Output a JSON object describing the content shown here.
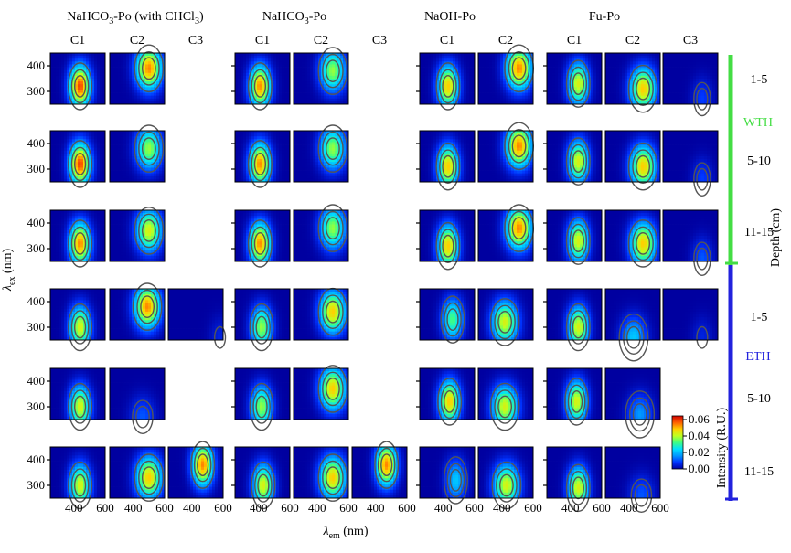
{
  "chart_data": {
    "type": "heatmap",
    "description_grid": "EEM component maps (C1-C3) for four extraction groups at three depths in two sites",
    "groups": [
      {
        "key": "chcl3",
        "title_main": "NaHCO",
        "title_sub": "3",
        "title_rest": "-Po (with CHCl",
        "title_sub2": "3",
        "title_end": ")",
        "components": [
          "C1",
          "C2",
          "C3"
        ]
      },
      {
        "key": "nahco3",
        "title_main": "NaHCO",
        "title_sub": "3",
        "title_rest": "-Po",
        "title_sub2": "",
        "title_end": "",
        "components": [
          "C1",
          "C2",
          "C3"
        ]
      },
      {
        "key": "naoh",
        "title_main": "NaOH-Po",
        "title_sub": "",
        "title_rest": "",
        "title_sub2": "",
        "title_end": "",
        "components": [
          "C1",
          "C2"
        ]
      },
      {
        "key": "fu",
        "title_main": "Fu-Po",
        "title_sub": "",
        "title_rest": "",
        "title_sub2": "",
        "title_end": "",
        "components": [
          "C1",
          "C2",
          "C3"
        ]
      }
    ],
    "rows": [
      {
        "site": "WTH",
        "depth": "1-5",
        "present": {
          "chcl3": [
            true,
            true,
            false
          ],
          "nahco3": [
            true,
            true,
            false
          ],
          "naoh": [
            true,
            true
          ],
          "fu": [
            true,
            true,
            true
          ]
        },
        "peaks": {
          "chcl3": [
            [
              440,
              320,
              0.055
            ],
            [
              500,
              390,
              0.05
            ]
          ],
          "nahco3": [
            [
              410,
              320,
              0.05
            ],
            [
              500,
              380,
              0.035
            ]
          ],
          "naoh": [
            [
              430,
              320,
              0.045
            ],
            [
              510,
              390,
              0.05
            ]
          ],
          "fu": [
            [
              450,
              330,
              0.04
            ],
            [
              490,
              310,
              0.045
            ],
            [
              500,
              270,
              0.008
            ]
          ]
        }
      },
      {
        "site": "WTH",
        "depth": "5-10",
        "present": {
          "chcl3": [
            true,
            true,
            false
          ],
          "nahco3": [
            true,
            true,
            false
          ],
          "naoh": [
            true,
            true
          ],
          "fu": [
            true,
            true,
            true
          ]
        },
        "peaks": {
          "chcl3": [
            [
              440,
              320,
              0.055
            ],
            [
              500,
              380,
              0.035
            ]
          ],
          "nahco3": [
            [
              410,
              320,
              0.05
            ],
            [
              500,
              380,
              0.035
            ]
          ],
          "naoh": [
            [
              430,
              310,
              0.045
            ],
            [
              510,
              390,
              0.05
            ]
          ],
          "fu": [
            [
              450,
              330,
              0.04
            ],
            [
              490,
              310,
              0.045
            ],
            [
              500,
              260,
              0.008
            ]
          ]
        }
      },
      {
        "site": "WTH",
        "depth": "11-15",
        "present": {
          "chcl3": [
            true,
            true,
            false
          ],
          "nahco3": [
            true,
            true,
            false
          ],
          "naoh": [
            true,
            true
          ],
          "fu": [
            true,
            true,
            true
          ]
        },
        "peaks": {
          "chcl3": [
            [
              440,
              320,
              0.05
            ],
            [
              500,
              370,
              0.04
            ]
          ],
          "nahco3": [
            [
              410,
              320,
              0.05
            ],
            [
              500,
              380,
              0.035
            ]
          ],
          "naoh": [
            [
              430,
              310,
              0.045
            ],
            [
              510,
              380,
              0.05
            ]
          ],
          "fu": [
            [
              450,
              330,
              0.04
            ],
            [
              490,
              320,
              0.045
            ],
            [
              500,
              260,
              0.01
            ]
          ]
        }
      },
      {
        "site": "ETH",
        "depth": "1-5",
        "present": {
          "chcl3": [
            true,
            true,
            true
          ],
          "nahco3": [
            true,
            true,
            false
          ],
          "naoh": [
            true,
            true
          ],
          "fu": [
            true,
            true,
            true
          ]
        },
        "peaks": {
          "chcl3": [
            [
              440,
              300,
              0.04
            ],
            [
              490,
              380,
              0.05
            ],
            [
              580,
              260,
              0.005
            ]
          ],
          "nahco3": [
            [
              420,
              300,
              0.035
            ],
            [
              500,
              360,
              0.045
            ]
          ],
          "naoh": [
            [
              460,
              330,
              0.03
            ],
            [
              420,
              320,
              0.04
            ]
          ],
          "fu": [
            [
              450,
              300,
              0.04
            ],
            [
              430,
              260,
              0.02
            ],
            [
              500,
              260,
              0.005
            ]
          ]
        }
      },
      {
        "site": "ETH",
        "depth": "5-10",
        "present": {
          "chcl3": [
            true,
            true,
            false
          ],
          "nahco3": [
            true,
            true,
            false
          ],
          "naoh": [
            true,
            true
          ],
          "fu": [
            true,
            true,
            false
          ]
        },
        "peaks": {
          "chcl3": [
            [
              440,
              300,
              0.04
            ],
            [
              460,
              260,
              0.01
            ]
          ],
          "nahco3": [
            [
              420,
              300,
              0.035
            ],
            [
              500,
              370,
              0.045
            ]
          ],
          "naoh": [
            [
              440,
              320,
              0.045
            ],
            [
              420,
              300,
              0.04
            ]
          ],
          "fu": [
            [
              440,
              320,
              0.04
            ],
            [
              470,
              270,
              0.015
            ]
          ]
        }
      },
      {
        "site": "ETH",
        "depth": "11-15",
        "present": {
          "chcl3": [
            true,
            true,
            true
          ],
          "nahco3": [
            true,
            true,
            true
          ],
          "naoh": [
            true,
            true
          ],
          "fu": [
            true,
            true,
            false
          ]
        },
        "peaks": {
          "chcl3": [
            [
              440,
              300,
              0.04
            ],
            [
              500,
              330,
              0.045
            ],
            [
              470,
              380,
              0.05
            ]
          ],
          "nahco3": [
            [
              430,
              300,
              0.04
            ],
            [
              500,
              330,
              0.045
            ],
            [
              470,
              380,
              0.05
            ]
          ],
          "naoh": [
            [
              480,
              320,
              0.02
            ],
            [
              430,
              300,
              0.04
            ]
          ],
          "fu": [
            [
              450,
              290,
              0.04
            ],
            [
              480,
              260,
              0.01
            ]
          ]
        }
      }
    ],
    "x_axis": {
      "label_main": "λ",
      "label_sub": "em",
      "label_unit": " (nm)",
      "ticks": [
        "400",
        "600"
      ],
      "range": [
        250,
        600
      ]
    },
    "y_axis": {
      "label_main": "λ",
      "label_sub": "ex",
      "label_unit": " (nm)",
      "ticks": [
        "400",
        "300"
      ],
      "range": [
        250,
        450
      ]
    },
    "colorbar": {
      "title": "Intensity (R.U.)",
      "ticks": [
        "0.06",
        "0.04",
        "0.02",
        "0.00"
      ],
      "range": [
        0,
        0.06
      ],
      "colors": [
        "#0000a0",
        "#0033ff",
        "#0099ff",
        "#00e0ff",
        "#40ff80",
        "#c0ff20",
        "#ffd000",
        "#ff6000",
        "#d00000"
      ]
    },
    "sites": [
      {
        "name": "WTH",
        "color": "#44dd44",
        "depths": [
          "1-5",
          "5-10",
          "11-15"
        ]
      },
      {
        "name": "ETH",
        "color": "#2222dd",
        "depths": [
          "1-5",
          "5-10",
          "11-15"
        ]
      }
    ],
    "depth_axis_label": "Depth (cm)"
  }
}
